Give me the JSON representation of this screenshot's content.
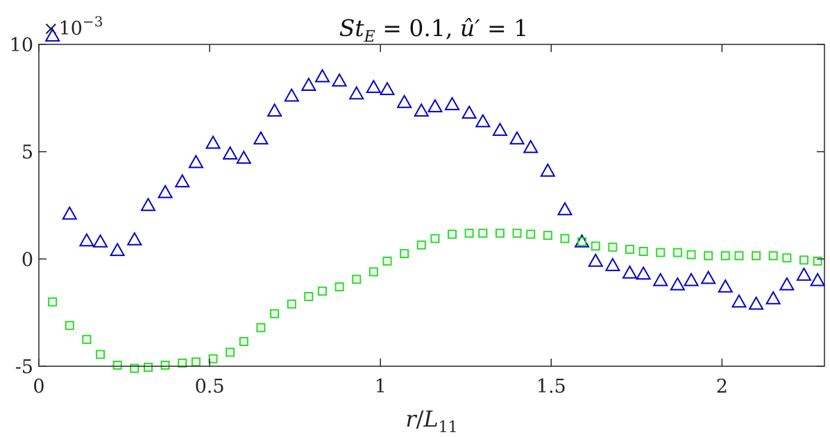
{
  "chart_data": {
    "type": "scatter",
    "title": "St_E = 0.1, û′ = 1",
    "title_parts": {
      "var": "St",
      "sub": "E",
      "eq1": " = 0.1, ",
      "uhat": "û′",
      "eq2": " = 1"
    },
    "xlabel": "r/L11",
    "xlabel_parts": {
      "r": "r",
      "slash": "/",
      "L": "L",
      "sub": "11"
    },
    "ylabel": "",
    "y_exponent_label": "×10",
    "y_exponent_power": "−3",
    "xlim": [
      0,
      2.3
    ],
    "ylim": [
      -5,
      10
    ],
    "xticks": [
      0,
      0.5,
      1,
      1.5,
      2
    ],
    "xtick_labels": [
      "0",
      "0.5",
      "1",
      "1.5",
      "2"
    ],
    "yticks": [
      -5,
      0,
      5,
      10
    ],
    "ytick_labels": [
      "-5",
      "0",
      "5",
      "10"
    ],
    "grid": false,
    "series": [
      {
        "name": "triangles",
        "marker": "triangle",
        "color": "#0000cc",
        "x": [
          0.04,
          0.09,
          0.14,
          0.18,
          0.23,
          0.28,
          0.32,
          0.37,
          0.42,
          0.46,
          0.51,
          0.56,
          0.6,
          0.65,
          0.69,
          0.74,
          0.79,
          0.83,
          0.88,
          0.93,
          0.98,
          1.02,
          1.07,
          1.12,
          1.16,
          1.21,
          1.26,
          1.3,
          1.35,
          1.4,
          1.44,
          1.49,
          1.54,
          1.59,
          1.63,
          1.68,
          1.73,
          1.77,
          1.82,
          1.87,
          1.91,
          1.96,
          2.01,
          2.05,
          2.1,
          2.15,
          2.19,
          2.24,
          2.28
        ],
        "y": [
          10.4,
          2.1,
          0.85,
          0.8,
          0.4,
          0.9,
          2.5,
          3.1,
          3.6,
          4.5,
          5.4,
          4.9,
          4.7,
          5.6,
          6.9,
          7.6,
          8.1,
          8.5,
          8.3,
          7.7,
          8.0,
          7.9,
          7.3,
          6.9,
          7.1,
          7.2,
          6.8,
          6.4,
          6.0,
          5.6,
          5.2,
          4.1,
          2.3,
          0.8,
          -0.1,
          -0.3,
          -0.65,
          -0.7,
          -1.0,
          -1.2,
          -1.0,
          -0.9,
          -1.3,
          -2.0,
          -2.1,
          -1.85,
          -1.2,
          -0.75,
          -1.0
        ]
      },
      {
        "name": "squares",
        "marker": "square",
        "color": "#22e022",
        "x": [
          0.04,
          0.09,
          0.14,
          0.18,
          0.23,
          0.28,
          0.32,
          0.37,
          0.42,
          0.46,
          0.51,
          0.56,
          0.6,
          0.65,
          0.69,
          0.74,
          0.79,
          0.83,
          0.88,
          0.93,
          0.98,
          1.02,
          1.07,
          1.12,
          1.16,
          1.21,
          1.26,
          1.3,
          1.35,
          1.4,
          1.44,
          1.49,
          1.54,
          1.59,
          1.63,
          1.68,
          1.73,
          1.77,
          1.82,
          1.87,
          1.91,
          1.96,
          2.01,
          2.05,
          2.1,
          2.15,
          2.19,
          2.24,
          2.28
        ],
        "y": [
          -2.0,
          -3.1,
          -3.75,
          -4.45,
          -4.95,
          -5.1,
          -5.05,
          -4.95,
          -4.85,
          -4.8,
          -4.65,
          -4.35,
          -3.85,
          -3.2,
          -2.55,
          -2.1,
          -1.75,
          -1.5,
          -1.3,
          -0.95,
          -0.6,
          -0.1,
          0.25,
          0.65,
          0.95,
          1.15,
          1.2,
          1.2,
          1.2,
          1.2,
          1.15,
          1.1,
          0.95,
          0.8,
          0.6,
          0.55,
          0.45,
          0.35,
          0.3,
          0.3,
          0.2,
          0.15,
          0.15,
          0.15,
          0.15,
          0.15,
          0.05,
          -0.05,
          -0.1
        ]
      }
    ]
  }
}
